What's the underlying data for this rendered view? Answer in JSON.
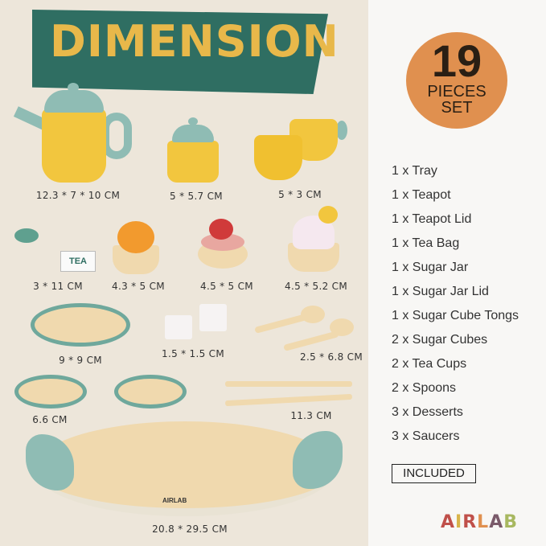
{
  "banner": {
    "title": "DIMENSION"
  },
  "badge": {
    "number": "19",
    "line1": "PIECES",
    "line2": "SET"
  },
  "dimensions": [
    "12.3 * 7 * 10 CM",
    "5 * 5.7 CM",
    "5 * 3 CM",
    "3 * 11 CM",
    "4.3 * 5 CM",
    "4.5 * 5 CM",
    "4.5 * 5.2 CM",
    "9 * 9 CM",
    "1.5 * 1.5 CM",
    "2.5 * 6.8 CM",
    "6.6 CM",
    "11.3 CM",
    "20.8 * 29.5 CM"
  ],
  "items": [
    "1 x Tray",
    "1 x Teapot",
    "1 x Teapot Lid",
    "1 x Tea Bag",
    "1 x Sugar Jar",
    "1 x Sugar Jar Lid",
    "1 x Sugar Cube Tongs",
    "2 x Sugar Cubes",
    "2 x Tea Cups",
    "2 x Spoons",
    "3 x Desserts",
    "3 x Saucers"
  ],
  "included_label": "INCLUDED",
  "tea_tag": "TEA",
  "brand": {
    "letters": [
      "A",
      "I",
      "R",
      "L",
      "A",
      "B"
    ],
    "colors": [
      "#c0504a",
      "#d8b44a",
      "#c0504a",
      "#e0904f",
      "#7a5a6a",
      "#a8b860"
    ],
    "tray_text": "AIRLAB"
  },
  "colors": {
    "banner": "#2f6e62",
    "banner_text": "#e8b84a",
    "badge": "#e0904f",
    "toy_yellow": "#f2c63e",
    "toy_teal": "#8fbcb4"
  }
}
